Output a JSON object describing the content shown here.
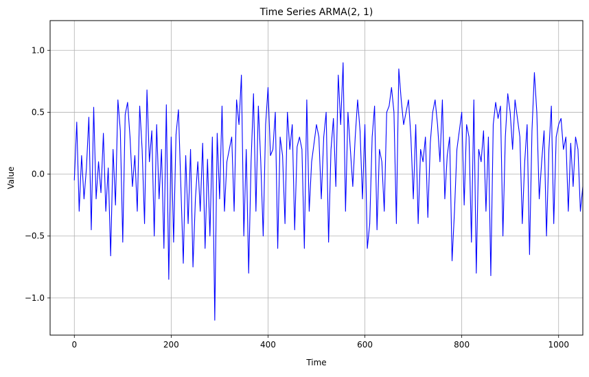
{
  "chart_data": {
    "type": "line",
    "title": "Time Series ARMA(2, 1)",
    "xlabel": "Time",
    "ylabel": "Value",
    "xlim": [
      -50,
      1050
    ],
    "ylim": [
      -1.3,
      1.24
    ],
    "xticks": [
      0,
      200,
      400,
      600,
      800,
      1000
    ],
    "xtick_labels": [
      "0",
      "200",
      "400",
      "600",
      "800",
      "1000"
    ],
    "yticks": [
      -1.0,
      -0.5,
      0.0,
      0.5,
      1.0
    ],
    "ytick_labels": [
      "−1.0",
      "−0.5",
      "0.0",
      "0.5",
      "1.0"
    ],
    "grid": true,
    "line_color": "#0000ff",
    "series": [
      {
        "x_start": 0,
        "x_step": 5,
        "values": [
          -0.05,
          0.42,
          -0.3,
          0.15,
          -0.2,
          0.05,
          0.46,
          -0.45,
          0.54,
          -0.2,
          0.1,
          -0.15,
          0.33,
          -0.3,
          0.05,
          -0.66,
          0.2,
          -0.25,
          0.6,
          0.35,
          -0.55,
          0.48,
          0.58,
          0.3,
          -0.1,
          0.15,
          -0.3,
          0.55,
          0.2,
          -0.4,
          0.68,
          0.1,
          0.35,
          -0.5,
          0.4,
          -0.2,
          0.2,
          -0.6,
          0.56,
          -0.85,
          0.3,
          -0.55,
          0.32,
          0.52,
          -0.1,
          -0.72,
          0.15,
          -0.4,
          0.2,
          -0.75,
          -0.2,
          0.1,
          -0.3,
          0.25,
          -0.6,
          0.12,
          -0.5,
          0.3,
          -1.18,
          0.33,
          -0.2,
          0.55,
          -0.3,
          0.1,
          0.2,
          0.3,
          -0.3,
          0.6,
          0.4,
          0.8,
          -0.5,
          0.2,
          -0.8,
          0.1,
          0.65,
          -0.3,
          0.55,
          0.1,
          -0.5,
          0.4,
          0.7,
          0.15,
          0.2,
          0.5,
          -0.6,
          0.3,
          0.15,
          -0.4,
          0.5,
          0.2,
          0.4,
          -0.45,
          0.22,
          0.3,
          0.2,
          -0.6,
          0.6,
          -0.3,
          0.1,
          0.25,
          0.4,
          0.3,
          -0.2,
          0.3,
          0.5,
          -0.55,
          0.2,
          0.45,
          -0.1,
          0.8,
          0.4,
          0.9,
          -0.3,
          0.5,
          0.2,
          -0.1,
          0.3,
          0.6,
          0.35,
          -0.2,
          0.4,
          -0.6,
          -0.4,
          0.3,
          0.55,
          -0.45,
          0.2,
          0.1,
          -0.3,
          0.5,
          0.55,
          0.7,
          0.5,
          -0.4,
          0.85,
          0.6,
          0.4,
          0.5,
          0.6,
          0.3,
          -0.2,
          0.4,
          -0.4,
          0.2,
          0.1,
          0.3,
          -0.35,
          0.25,
          0.5,
          0.6,
          0.4,
          0.1,
          0.6,
          -0.2,
          0.15,
          0.3,
          -0.7,
          -0.3,
          0.2,
          0.35,
          0.5,
          -0.25,
          0.4,
          0.3,
          -0.55,
          0.6,
          -0.8,
          0.2,
          0.1,
          0.35,
          -0.3,
          0.3,
          -0.82,
          0.4,
          0.58,
          0.45,
          0.55,
          -0.5,
          0.3,
          0.65,
          0.5,
          0.2,
          0.6,
          0.45,
          0.3,
          -0.4,
          0.1,
          0.4,
          -0.65,
          0.35,
          0.82,
          0.5,
          -0.2,
          0.1,
          0.35,
          -0.5,
          0.2,
          0.55,
          -0.4,
          0.3,
          0.4,
          0.45,
          0.2,
          0.3,
          -0.3,
          0.25,
          -0.1,
          0.3,
          0.2,
          -0.3,
          -0.1
        ]
      }
    ]
  }
}
